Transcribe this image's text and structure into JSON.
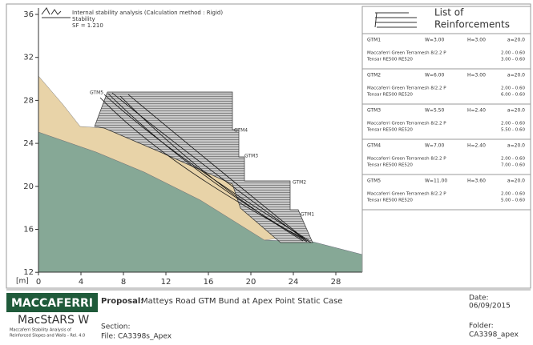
{
  "legend": {
    "title": "Internal stability analysis (Calculation method : Rigid)",
    "stability": "Stability",
    "sf": "SF = 1.210"
  },
  "axes": {
    "unit": "[m]",
    "xticks": [
      0,
      4,
      8,
      12,
      16,
      20,
      24,
      28
    ],
    "yticks": [
      36,
      32,
      28,
      24,
      20,
      16,
      12
    ]
  },
  "labels": [
    "GTM5",
    "GTM4",
    "GTM3",
    "GTM2",
    "GTM1"
  ],
  "reinforcements": {
    "title_line1": "List of",
    "title_line2": "Reinforcements",
    "items": [
      {
        "name": "GTM1",
        "w": "W=3.00",
        "h": "H=3.00",
        "a": "a=20.0",
        "lines": [
          {
            "product": "Maccaferri Green Terramesh 8/2.2 P",
            "value": "2.00 - 0.60"
          },
          {
            "product": "Tensar RE500 RE520",
            "value": "3.00 - 0.60"
          }
        ]
      },
      {
        "name": "GTM2",
        "w": "W=6.00",
        "h": "H=3.00",
        "a": "a=20.0",
        "lines": [
          {
            "product": "Maccaferri Green Terramesh 8/2.2 P",
            "value": "2.00 - 0.60"
          },
          {
            "product": "Tensar RE500 RE520",
            "value": "6.00 - 0.60"
          }
        ]
      },
      {
        "name": "GTM3",
        "w": "W=5.50",
        "h": "H=2.40",
        "a": "a=20.0",
        "lines": [
          {
            "product": "Maccaferri Green Terramesh 8/2.2 P",
            "value": "2.00 - 0.60"
          },
          {
            "product": "Tensar RE500 RE520",
            "value": "5.50 - 0.60"
          }
        ]
      },
      {
        "name": "GTM4",
        "w": "W=7.00",
        "h": "H=2.40",
        "a": "a=20.0",
        "lines": [
          {
            "product": "Maccaferri Green Terramesh 8/2.2 P",
            "value": "2.00 - 0.60"
          },
          {
            "product": "Tensar RE500 RE520",
            "value": "7.00 - 0.60"
          }
        ]
      },
      {
        "name": "GTM5",
        "w": "W=11.00",
        "h": "H=3.60",
        "a": "a=20.0",
        "lines": [
          {
            "product": "Maccaferri Green Terramesh 8/2.2 P",
            "value": "2.00 - 0.60"
          },
          {
            "product": "Tensar RE500 RE520",
            "value": "5.00 - 0.60"
          }
        ]
      }
    ]
  },
  "footer": {
    "brand": "MACCAFERRI",
    "proposal_label": "Proposal:",
    "proposal": "Matteys Road GTM Bund at Apex Point Static Case",
    "software": "MacStARS W",
    "software_desc_1": "Maccaferri Stability Analysis of",
    "software_desc_2": "Reinforced Slopes and Walls - Rel. 4.0",
    "section_label": "Section:",
    "file": "File: CA3398s_Apex",
    "date_label": "Date:",
    "date": "06/09/2015",
    "folder_label": "Folder:",
    "folder": "CA3398_apex"
  }
}
